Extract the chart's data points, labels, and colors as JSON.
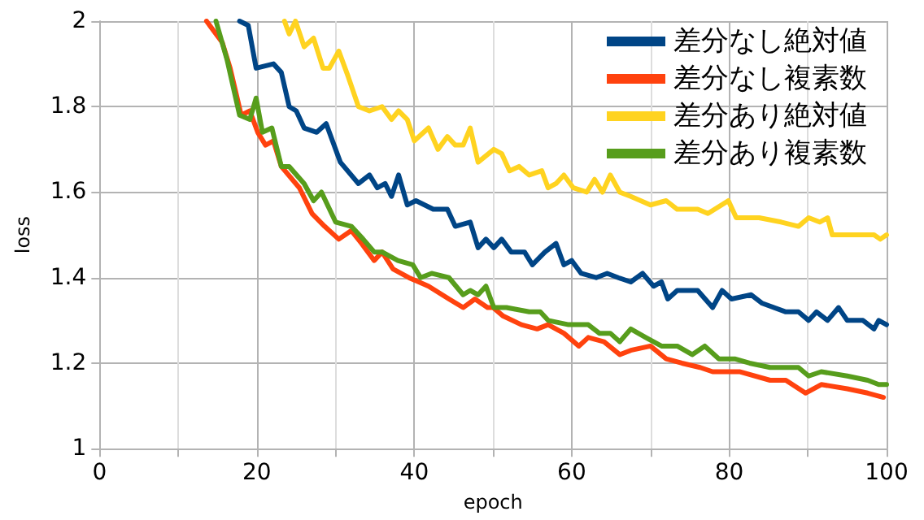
{
  "chart_data": {
    "type": "line",
    "xlabel": "epoch",
    "ylabel": "loss",
    "xlim": [
      0,
      100
    ],
    "ylim": [
      1,
      2
    ],
    "xticks": [
      0,
      {
        "value": 10,
        "label": null
      },
      20,
      {
        "value": 30,
        "label": null
      },
      40,
      {
        "value": 50,
        "label": null
      },
      60,
      {
        "value": 70,
        "label": null
      },
      80,
      {
        "value": 90,
        "label": null
      },
      100
    ],
    "yticks": [
      1,
      1.2,
      1.4,
      1.6,
      1.8,
      2
    ],
    "grid": true,
    "legend": "top right",
    "marker": "none",
    "line_style": "solid",
    "series": [
      {
        "name": "差分なし絶対値",
        "color": "#004586",
        "x": [
          17.8,
          18.9,
          19.9,
          22.1,
          23.1,
          24.1,
          25,
          26,
          27.6,
          28.8,
          30.6,
          32.9,
          34.3,
          35.3,
          36.3,
          37.1,
          38,
          39.1,
          40.2,
          42.4,
          44.2,
          45.2,
          47.1,
          48.1,
          49.1,
          50.1,
          51.1,
          52.3,
          54,
          55,
          56.6,
          58,
          59,
          60,
          61.2,
          63.1,
          64.5,
          65.9,
          67.5,
          69,
          70.4,
          71.4,
          72.2,
          73.4,
          76,
          77.9,
          79.1,
          80.3,
          82.8,
          84.2,
          87.2,
          88.8,
          90.1,
          91.1,
          92.5,
          93.9,
          95,
          97,
          98.4,
          99,
          100
        ],
        "values": [
          2,
          1.99,
          1.89,
          1.9,
          1.88,
          1.8,
          1.79,
          1.75,
          1.74,
          1.76,
          1.67,
          1.62,
          1.64,
          1.61,
          1.62,
          1.59,
          1.64,
          1.57,
          1.58,
          1.56,
          1.56,
          1.52,
          1.53,
          1.47,
          1.49,
          1.47,
          1.49,
          1.46,
          1.46,
          1.43,
          1.46,
          1.48,
          1.43,
          1.44,
          1.41,
          1.4,
          1.41,
          1.4,
          1.39,
          1.41,
          1.38,
          1.39,
          1.35,
          1.37,
          1.37,
          1.33,
          1.37,
          1.35,
          1.36,
          1.34,
          1.32,
          1.32,
          1.3,
          1.32,
          1.3,
          1.33,
          1.3,
          1.3,
          1.28,
          1.3,
          1.29
        ]
      },
      {
        "name": "差分なし複素数",
        "color": "#ff420e",
        "x": [
          13.6,
          15.6,
          16.6,
          18,
          19.1,
          20.1,
          21.1,
          22.1,
          23.1,
          25.4,
          27,
          28.6,
          30.4,
          32,
          33.3,
          34.9,
          35.9,
          37.3,
          39.3,
          41.8,
          44.4,
          46.2,
          47.7,
          49.3,
          50,
          51.3,
          53.6,
          55.6,
          57,
          59,
          60.9,
          62.1,
          64.1,
          66.1,
          67.5,
          70,
          72,
          74,
          76.3,
          77.9,
          81.3,
          85.2,
          87.2,
          89.7,
          91.7,
          95,
          97.6,
          99.6
        ],
        "values": [
          2,
          1.95,
          1.89,
          1.78,
          1.79,
          1.74,
          1.71,
          1.72,
          1.66,
          1.61,
          1.55,
          1.52,
          1.49,
          1.51,
          1.48,
          1.44,
          1.46,
          1.42,
          1.4,
          1.38,
          1.35,
          1.33,
          1.35,
          1.33,
          1.33,
          1.31,
          1.29,
          1.28,
          1.29,
          1.27,
          1.24,
          1.26,
          1.25,
          1.22,
          1.23,
          1.24,
          1.21,
          1.2,
          1.19,
          1.18,
          1.18,
          1.16,
          1.16,
          1.13,
          1.15,
          1.14,
          1.13,
          1.12
        ]
      },
      {
        "name": "差分あり絶対値",
        "color": "#ffd320",
        "x": [
          23.5,
          24.1,
          24.9,
          26,
          27.2,
          28.4,
          29.2,
          30.4,
          31.6,
          32.9,
          34.3,
          35.9,
          37.1,
          38,
          39.1,
          40,
          41.8,
          43,
          44.2,
          45.2,
          46.2,
          47.1,
          48.1,
          50.1,
          51.1,
          52.1,
          53.3,
          54.6,
          56.2,
          57,
          58,
          59,
          60.2,
          61.9,
          62.9,
          63.9,
          64.9,
          66.1,
          67.5,
          70,
          72,
          73.4,
          76,
          77.3,
          79.9,
          80.9,
          83.8,
          86.6,
          88.8,
          90.1,
          91.5,
          92.5,
          93.1,
          95.7,
          98.4,
          99.2,
          100
        ],
        "values": [
          2,
          1.97,
          2,
          1.94,
          1.96,
          1.89,
          1.89,
          1.93,
          1.87,
          1.8,
          1.79,
          1.8,
          1.77,
          1.79,
          1.77,
          1.72,
          1.75,
          1.7,
          1.73,
          1.71,
          1.71,
          1.75,
          1.67,
          1.7,
          1.69,
          1.65,
          1.66,
          1.64,
          1.65,
          1.61,
          1.62,
          1.64,
          1.61,
          1.6,
          1.63,
          1.6,
          1.64,
          1.6,
          1.59,
          1.57,
          1.58,
          1.56,
          1.56,
          1.55,
          1.58,
          1.54,
          1.54,
          1.53,
          1.52,
          1.54,
          1.53,
          1.54,
          1.5,
          1.5,
          1.5,
          1.49,
          1.5
        ]
      },
      {
        "name": "差分あり複素数",
        "color": "#579d1c",
        "x": [
          14.8,
          16.2,
          17.8,
          19.1,
          19.9,
          20.7,
          21.9,
          23.1,
          24.1,
          26,
          27.2,
          28.2,
          30,
          32,
          33.5,
          34.9,
          35.9,
          37.9,
          39.8,
          40.8,
          42.2,
          44.4,
          46.2,
          47.1,
          48.1,
          49.1,
          50.1,
          51.7,
          54.6,
          56,
          57,
          59.6,
          62.1,
          63.5,
          64.9,
          66.1,
          67.5,
          69.4,
          71.4,
          73.4,
          75.3,
          76.9,
          78.7,
          80.7,
          82.6,
          85.2,
          87.2,
          88.8,
          90.1,
          91.7,
          95,
          97.6,
          99,
          100
        ],
        "values": [
          2,
          1.91,
          1.78,
          1.77,
          1.82,
          1.74,
          1.75,
          1.66,
          1.66,
          1.62,
          1.58,
          1.6,
          1.53,
          1.52,
          1.49,
          1.46,
          1.46,
          1.44,
          1.43,
          1.4,
          1.41,
          1.4,
          1.36,
          1.37,
          1.36,
          1.38,
          1.33,
          1.33,
          1.32,
          1.32,
          1.3,
          1.29,
          1.29,
          1.27,
          1.27,
          1.25,
          1.28,
          1.26,
          1.24,
          1.24,
          1.22,
          1.24,
          1.21,
          1.21,
          1.2,
          1.19,
          1.19,
          1.19,
          1.17,
          1.18,
          1.17,
          1.16,
          1.15,
          1.15
        ]
      }
    ]
  }
}
